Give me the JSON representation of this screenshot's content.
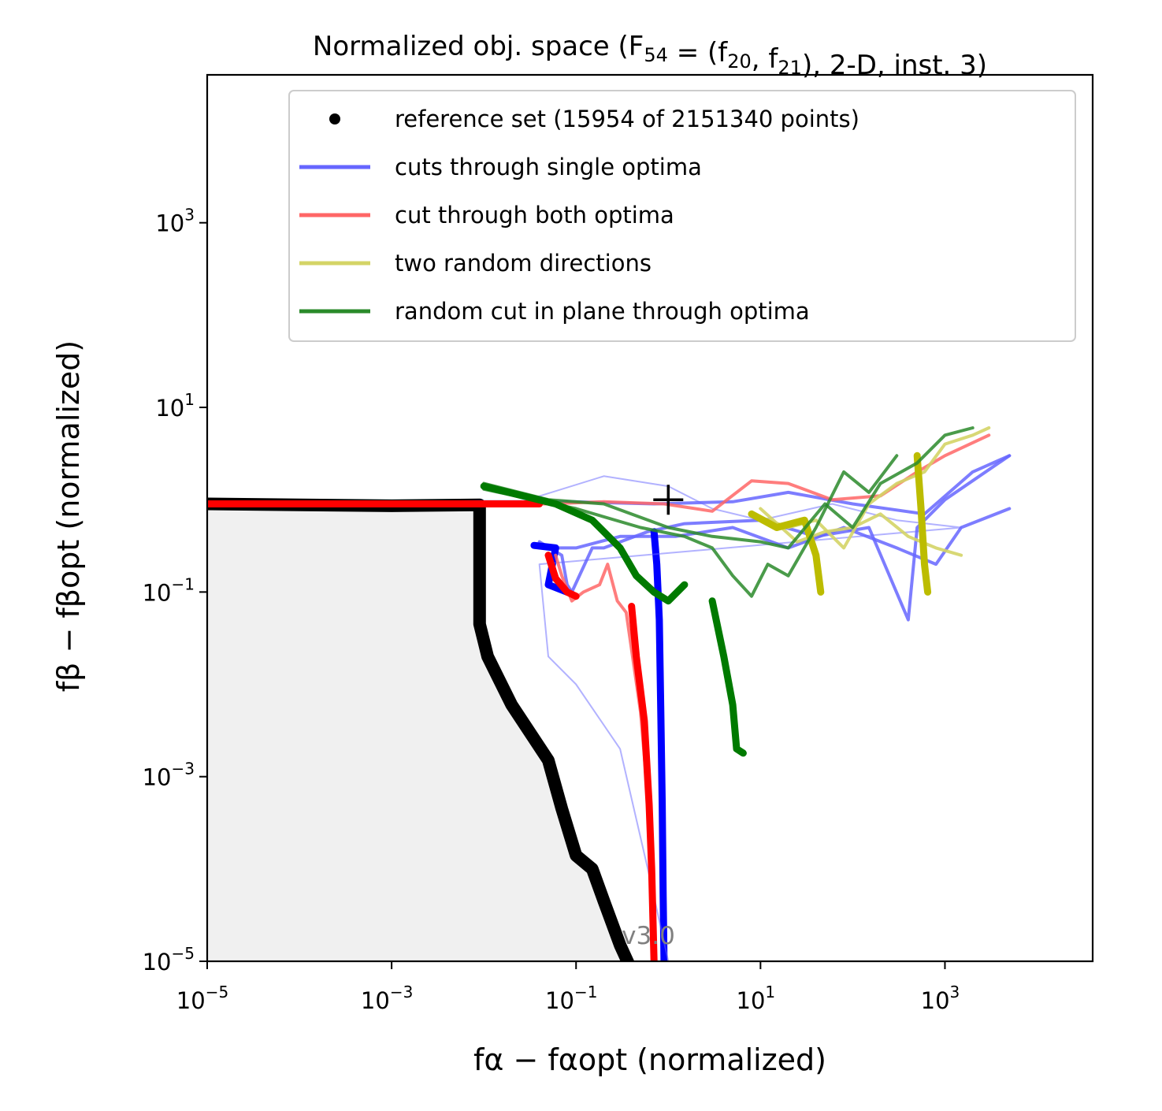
{
  "chart_data": {
    "type": "scatter",
    "title": "Normalized obj. space (F₅₄ = (f₂₀, f₂₁), 2-D, inst. 3)",
    "xlabel": "fα − fαopt (normalized)",
    "ylabel": "fβ − fβopt (normalized)",
    "xscale": "log",
    "yscale": "log",
    "xlim": [
      1e-05,
      40000
    ],
    "ylim": [
      1e-05,
      40000
    ],
    "x_ticks": [
      {
        "base": "10",
        "exp": "−5",
        "value": 1e-05
      },
      {
        "base": "10",
        "exp": "−3",
        "value": 0.001
      },
      {
        "base": "10",
        "exp": "−1",
        "value": 0.1
      },
      {
        "base": "10",
        "exp": "1",
        "value": 10
      },
      {
        "base": "10",
        "exp": "3",
        "value": 1000
      }
    ],
    "y_ticks": [
      {
        "base": "10",
        "exp": "−5",
        "value": 1e-05
      },
      {
        "base": "10",
        "exp": "−3",
        "value": 0.001
      },
      {
        "base": "10",
        "exp": "−1",
        "value": 0.1
      },
      {
        "base": "10",
        "exp": "1",
        "value": 10
      },
      {
        "base": "10",
        "exp": "3",
        "value": 1000
      }
    ],
    "grid": false,
    "legend_position": "top-right",
    "version_text": "v3.0",
    "marker_point": {
      "x": 1.0,
      "y": 1.0,
      "symbol": "+"
    },
    "dominated_region_color": "#f0f0f0",
    "legend": [
      {
        "label": "reference set (15954 of 2151340 points)",
        "kind": "marker",
        "color": "#000000"
      },
      {
        "label": "cuts through single optima",
        "kind": "line",
        "color": "#6666ff"
      },
      {
        "label": "cut through both optima",
        "kind": "line",
        "color": "#ff6666"
      },
      {
        "label": "two random directions",
        "kind": "line",
        "color": "#d4d466"
      },
      {
        "label": "random cut in plane through optima",
        "kind": "line",
        "color": "#2a8a2a"
      }
    ],
    "series": [
      {
        "name": "reference set (15954 of 2151340 points)",
        "role": "reference",
        "color": "#000000",
        "points": [
          [
            1e-05,
            0.9
          ],
          [
            0.0001,
            0.88
          ],
          [
            0.001,
            0.86
          ],
          [
            0.009,
            0.88
          ],
          [
            0.009,
            0.045
          ],
          [
            0.011,
            0.02
          ],
          [
            0.02,
            0.006
          ],
          [
            0.05,
            0.0015
          ],
          [
            0.07,
            0.00045
          ],
          [
            0.1,
            0.00014
          ],
          [
            0.15,
            0.0001
          ],
          [
            0.2,
            4.5e-05
          ],
          [
            0.3,
            1.5e-05
          ],
          [
            0.4,
            8e-06
          ]
        ]
      },
      {
        "name": "cuts through single optima",
        "color": "#6666ff",
        "opacity": 0.85,
        "points": [
          [
            1e-05,
            0.9
          ],
          [
            0.01,
            0.95
          ],
          [
            0.09,
            0.95
          ],
          [
            0.7,
            0.9
          ],
          [
            5,
            0.95
          ],
          [
            20,
            1.2
          ],
          [
            100,
            0.9
          ],
          [
            600,
            0.7
          ],
          [
            2000,
            2.0
          ],
          [
            5000,
            3.0
          ]
        ]
      },
      {
        "name": "cuts through single optima",
        "color": "#6666ff",
        "opacity": 0.85,
        "points": [
          [
            0.04,
            0.3
          ],
          [
            0.1,
            0.3
          ],
          [
            0.3,
            0.4
          ],
          [
            1.2,
            0.4
          ],
          [
            5,
            0.5
          ],
          [
            20,
            0.3
          ],
          [
            80,
            0.5
          ],
          [
            300,
            0.3
          ],
          [
            800,
            0.2
          ],
          [
            1500,
            0.5
          ],
          [
            5000,
            0.8
          ]
        ]
      },
      {
        "name": "cuts through single optima",
        "color": "#6666ff",
        "opacity": 0.85,
        "points": [
          [
            0.04,
            0.35
          ],
          [
            0.07,
            0.25
          ],
          [
            0.08,
            0.12
          ],
          [
            0.09,
            0.1
          ],
          [
            0.15,
            0.3
          ],
          [
            0.2,
            0.3
          ],
          [
            0.6,
            0.45
          ],
          [
            1.5,
            0.55
          ],
          [
            10,
            0.6
          ],
          [
            40,
            0.4
          ],
          [
            150,
            0.5
          ],
          [
            400,
            0.05
          ],
          [
            500,
            0.5
          ],
          [
            1000,
            1.0
          ],
          [
            5000,
            3.0
          ]
        ]
      },
      {
        "name": "cuts through single optima",
        "color": "#0000ff",
        "opacity": 1.0,
        "width": 9,
        "points": [
          [
            0.7,
            0.45
          ],
          [
            0.75,
            0.2
          ],
          [
            0.8,
            0.05
          ],
          [
            0.83,
            0.005
          ],
          [
            0.86,
            0.0005
          ],
          [
            0.88,
            5e-05
          ],
          [
            0.9,
            1e-05
          ]
        ]
      },
      {
        "name": "cuts through single optima",
        "color": "#0000ff",
        "opacity": 1.0,
        "width": 9,
        "points": [
          [
            0.035,
            0.32
          ],
          [
            0.06,
            0.3
          ],
          [
            0.05,
            0.12
          ],
          [
            0.08,
            0.1
          ]
        ]
      },
      {
        "name": "cuts through single optima",
        "color": "#6666ff",
        "opacity": 0.5,
        "width": 2,
        "points": [
          [
            0.03,
            1.0
          ],
          [
            0.2,
            1.8
          ],
          [
            1,
            1.4
          ],
          [
            3,
            0.8
          ],
          [
            10,
            0.6
          ],
          [
            60,
            0.9
          ],
          [
            300,
            0.6
          ],
          [
            1500,
            0.5
          ],
          [
            0.04,
            0.2
          ],
          [
            0.05,
            0.02
          ],
          [
            0.1,
            0.01
          ],
          [
            0.3,
            0.002
          ],
          [
            0.6,
            0.0001
          ],
          [
            1,
            1e-05
          ]
        ]
      },
      {
        "name": "cut through both optima",
        "color": "#ff6666",
        "opacity": 0.85,
        "points": [
          [
            1e-05,
            0.9
          ],
          [
            0.05,
            0.9
          ],
          [
            0.2,
            0.95
          ],
          [
            0.9,
            0.9
          ],
          [
            3,
            0.75
          ],
          [
            8,
            1.6
          ],
          [
            20,
            1.5
          ],
          [
            60,
            1.0
          ],
          [
            200,
            1.1
          ],
          [
            500,
            2.0
          ],
          [
            1000,
            3.0
          ],
          [
            3000,
            5.0
          ]
        ]
      },
      {
        "name": "cut through both optima",
        "color": "#ff6666",
        "opacity": 0.85,
        "points": [
          [
            0.06,
            0.25
          ],
          [
            0.07,
            0.15
          ],
          [
            0.09,
            0.08
          ],
          [
            0.12,
            0.1
          ],
          [
            0.18,
            0.12
          ],
          [
            0.22,
            0.2
          ],
          [
            0.28,
            0.08
          ],
          [
            0.35,
            0.06
          ],
          [
            0.5,
            0.005
          ],
          [
            0.6,
            0.0006
          ],
          [
            0.65,
            5e-05
          ],
          [
            0.7,
            1e-05
          ]
        ]
      },
      {
        "name": "cut through both optima",
        "color": "#ff0000",
        "opacity": 1.0,
        "width": 9,
        "points": [
          [
            1e-05,
            0.9
          ],
          [
            0.001,
            0.9
          ],
          [
            0.04,
            0.9
          ]
        ]
      },
      {
        "name": "cut through both optima",
        "color": "#ff0000",
        "opacity": 1.0,
        "width": 9,
        "points": [
          [
            0.05,
            0.25
          ],
          [
            0.06,
            0.14
          ],
          [
            0.08,
            0.1
          ],
          [
            0.1,
            0.09
          ]
        ]
      },
      {
        "name": "cut through both optima",
        "color": "#ff0000",
        "opacity": 1.0,
        "width": 9,
        "points": [
          [
            0.4,
            0.07
          ],
          [
            0.45,
            0.02
          ],
          [
            0.55,
            0.004
          ],
          [
            0.62,
            0.0005
          ],
          [
            0.66,
            0.0001
          ],
          [
            0.7,
            1e-05
          ]
        ]
      },
      {
        "name": "two random directions",
        "color": "#d4d466",
        "opacity": 0.9,
        "points": [
          [
            8,
            0.7
          ],
          [
            20,
            0.5
          ],
          [
            40,
            0.6
          ],
          [
            80,
            0.3
          ],
          [
            150,
            0.9
          ],
          [
            300,
            1.5
          ],
          [
            600,
            2.0
          ],
          [
            1000,
            4.0
          ],
          [
            2000,
            5.0
          ],
          [
            3000,
            6.0
          ]
        ]
      },
      {
        "name": "two random directions",
        "color": "#d4d466",
        "opacity": 0.9,
        "points": [
          [
            10,
            0.8
          ],
          [
            25,
            0.35
          ],
          [
            50,
            0.45
          ],
          [
            100,
            0.5
          ],
          [
            200,
            0.7
          ],
          [
            400,
            0.4
          ],
          [
            800,
            0.3
          ],
          [
            1500,
            0.25
          ]
        ]
      },
      {
        "name": "two random directions",
        "color": "#bcbc00",
        "opacity": 1.0,
        "width": 9,
        "points": [
          [
            8,
            0.7
          ],
          [
            15,
            0.5
          ],
          [
            30,
            0.6
          ],
          [
            40,
            0.25
          ],
          [
            45,
            0.1
          ]
        ]
      },
      {
        "name": "two random directions",
        "color": "#bcbc00",
        "opacity": 1.0,
        "width": 9,
        "points": [
          [
            500,
            3.0
          ],
          [
            550,
            0.8
          ],
          [
            600,
            0.2
          ],
          [
            650,
            0.1
          ]
        ]
      },
      {
        "name": "random cut in plane through optima",
        "color": "#2a8a2a",
        "opacity": 0.85,
        "points": [
          [
            0.01,
            1.5
          ],
          [
            0.05,
            1.0
          ],
          [
            0.2,
            0.9
          ],
          [
            1.0,
            0.5
          ],
          [
            3.0,
            0.4
          ],
          [
            10,
            0.35
          ],
          [
            20,
            0.3
          ],
          [
            50,
            0.9
          ],
          [
            100,
            0.5
          ],
          [
            200,
            1.5
          ],
          [
            500,
            2.5
          ],
          [
            1000,
            5.0
          ],
          [
            2000,
            6.0
          ]
        ]
      },
      {
        "name": "random cut in plane through optima",
        "color": "#2a8a2a",
        "opacity": 0.85,
        "points": [
          [
            0.01,
            1.3
          ],
          [
            0.1,
            0.8
          ],
          [
            0.5,
            0.5
          ],
          [
            1.5,
            0.4
          ],
          [
            3,
            0.3
          ],
          [
            5,
            0.15
          ],
          [
            8,
            0.09
          ],
          [
            12,
            0.2
          ],
          [
            20,
            0.15
          ],
          [
            40,
            0.5
          ],
          [
            80,
            2.0
          ],
          [
            150,
            1.2
          ],
          [
            300,
            3.0
          ]
        ]
      },
      {
        "name": "random cut in plane through optima",
        "color": "#007a00",
        "opacity": 1.0,
        "width": 9,
        "points": [
          [
            0.01,
            1.4
          ],
          [
            0.06,
            0.9
          ],
          [
            0.15,
            0.6
          ],
          [
            0.3,
            0.3
          ],
          [
            0.45,
            0.15
          ],
          [
            0.7,
            0.1
          ],
          [
            1.0,
            0.08
          ],
          [
            1.5,
            0.12
          ]
        ]
      },
      {
        "name": "random cut in plane through optima",
        "color": "#007a00",
        "opacity": 1.0,
        "width": 9,
        "points": [
          [
            3.0,
            0.08
          ],
          [
            4.0,
            0.02
          ],
          [
            5.0,
            0.006
          ],
          [
            5.5,
            0.002
          ],
          [
            6.5,
            0.0018
          ]
        ]
      }
    ]
  }
}
